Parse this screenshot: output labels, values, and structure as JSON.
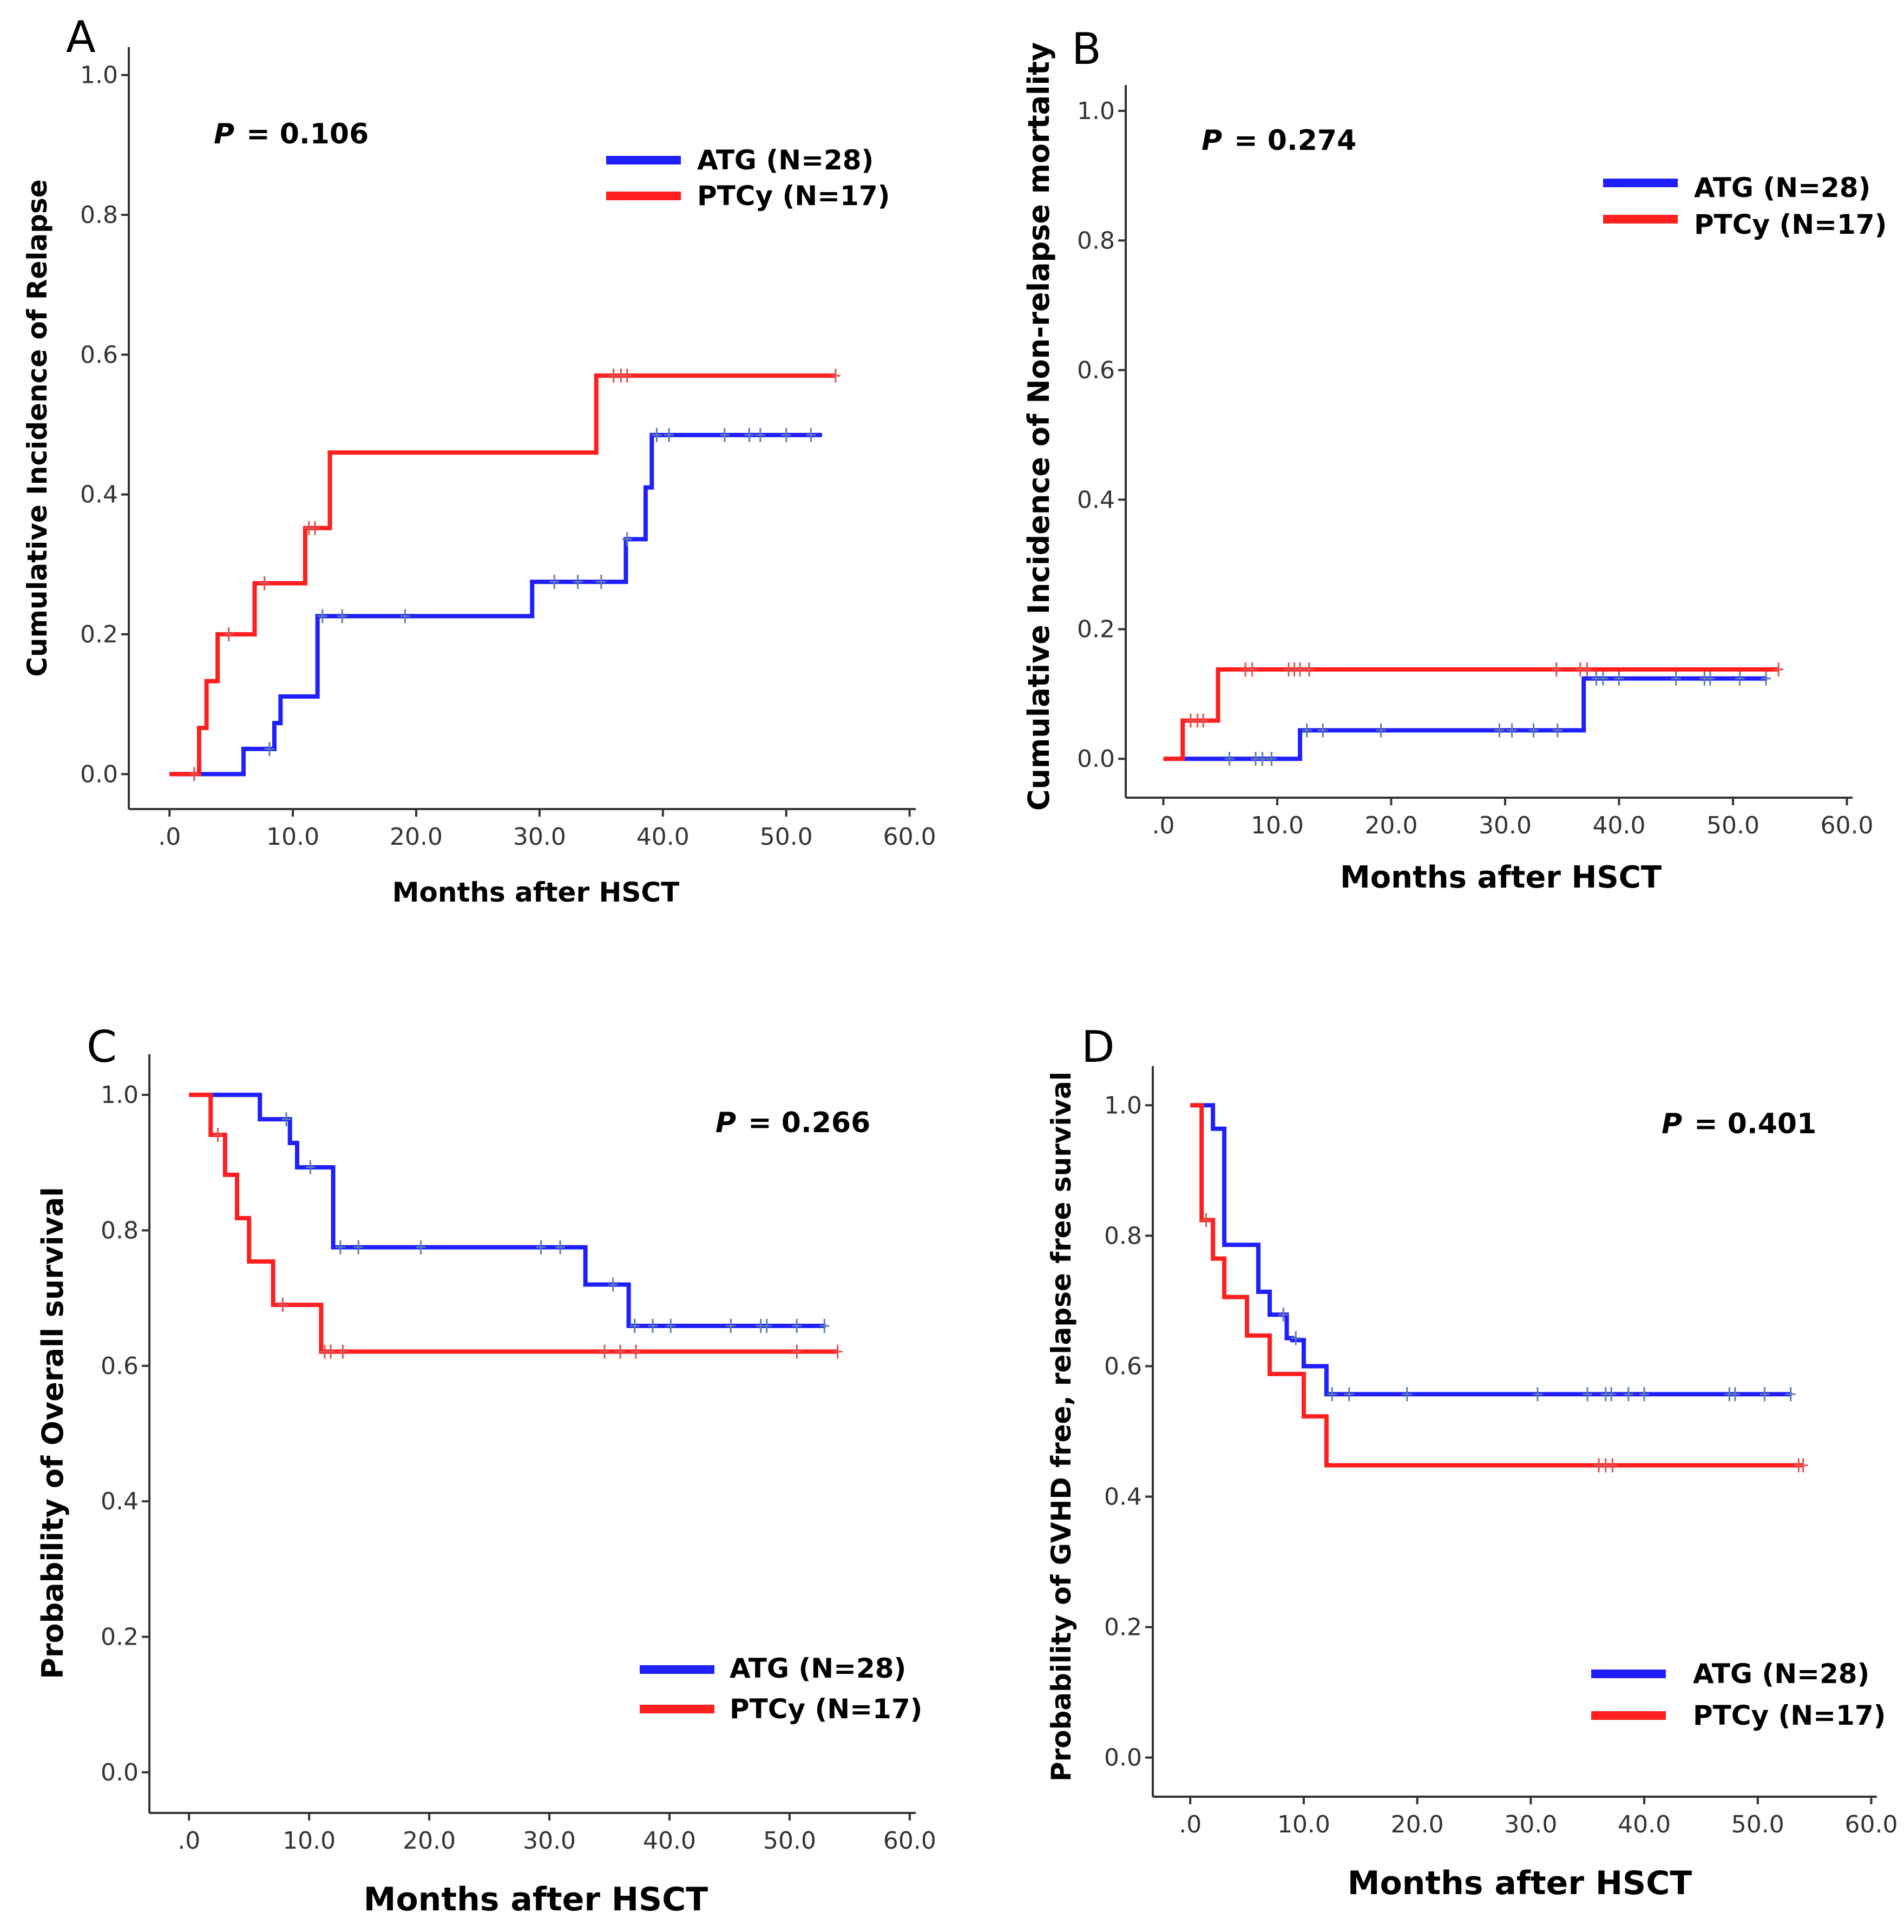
{
  "colors": {
    "atg": "#1f1fff",
    "ptcy": "#ff1f1f",
    "axis": "#333333",
    "atg_censor": "#5a7fb0",
    "ptcy_censor": "#e05050"
  },
  "chart_data": [
    {
      "panel": "A",
      "type": "line",
      "step": true,
      "ylabel": "Cumulative Incidence of Relapse",
      "xlabel": "Months after HSCT",
      "xlim": [
        -3.3,
        60.5
      ],
      "ylim": [
        -0.05,
        1.04
      ],
      "x_ticks": [
        0,
        10,
        20,
        30,
        40,
        50,
        60
      ],
      "x_tick_labels": [
        ".0",
        "10.0",
        "20.0",
        "30.0",
        "40.0",
        "50.0",
        "60.0"
      ],
      "y_ticks": [
        0,
        0.2,
        0.4,
        0.6,
        0.8,
        1.0
      ],
      "y_tick_labels": [
        "0.0",
        "0.2",
        "0.4",
        "0.6",
        "0.8",
        "1.0"
      ],
      "p_letter": "P",
      "p_text": "= 0.106",
      "legend_position": "top-right",
      "series": [
        {
          "name": "ATG (N=28)",
          "color": "atg",
          "x": [
            0,
            6.0,
            8.5,
            9.0,
            12.0,
            29.4,
            37.0,
            38.6,
            39.1,
            52.9
          ],
          "y": [
            0,
            0.036,
            0.073,
            0.111,
            0.226,
            0.275,
            0.336,
            0.41,
            0.485,
            0.485
          ],
          "censored": [
            [
              8.1,
              0.036
            ],
            [
              12.4,
              0.226
            ],
            [
              14.0,
              0.226
            ],
            [
              19.1,
              0.226
            ],
            [
              31.2,
              0.275
            ],
            [
              33.1,
              0.275
            ],
            [
              35.0,
              0.275
            ],
            [
              37.1,
              0.336
            ],
            [
              39.5,
              0.485
            ],
            [
              40.5,
              0.485
            ],
            [
              45.0,
              0.485
            ],
            [
              47.0,
              0.485
            ],
            [
              47.9,
              0.485
            ],
            [
              50.0,
              0.485
            ],
            [
              52.0,
              0.485
            ]
          ]
        },
        {
          "name": "PTCy (N=17)",
          "color": "ptcy",
          "x": [
            0,
            2.4,
            3.0,
            3.9,
            6.9,
            11.0,
            13.0,
            34.6,
            54.0
          ],
          "y": [
            0,
            0.066,
            0.133,
            0.2,
            0.273,
            0.352,
            0.46,
            0.57,
            0.57
          ],
          "censored": [
            [
              2.0,
              0
            ],
            [
              4.8,
              0.2
            ],
            [
              7.7,
              0.273
            ],
            [
              11.3,
              0.352
            ],
            [
              11.8,
              0.352
            ],
            [
              36.0,
              0.57
            ],
            [
              36.6,
              0.57
            ],
            [
              37.1,
              0.57
            ],
            [
              54.0,
              0.57
            ]
          ]
        }
      ],
      "legend": [
        {
          "label": "ATG (N=28)",
          "color": "atg"
        },
        {
          "label": "PTCy (N=17)",
          "color": "ptcy"
        }
      ]
    },
    {
      "panel": "B",
      "type": "line",
      "step": true,
      "ylabel": "Cumulative Incidence of Non-relapse mortality",
      "xlabel": "Months after HSCT",
      "xlim": [
        -3.3,
        60.5
      ],
      "ylim": [
        -0.06,
        1.04
      ],
      "x_ticks": [
        0,
        10,
        20,
        30,
        40,
        50,
        60
      ],
      "x_tick_labels": [
        ".0",
        "10.0",
        "20.0",
        "30.0",
        "40.0",
        "50.0",
        "60.0"
      ],
      "y_ticks": [
        0,
        0.2,
        0.4,
        0.6,
        0.8,
        1.0
      ],
      "y_tick_labels": [
        "0.0",
        "0.2",
        "0.4",
        "0.6",
        "0.8",
        "1.0"
      ],
      "p_letter": "P",
      "p_text": "= 0.274",
      "legend_position": "top-right",
      "series": [
        {
          "name": "ATG (N=28)",
          "color": "atg",
          "x": [
            0,
            12.0,
            36.9,
            53.0
          ],
          "y": [
            0,
            0.044,
            0.124,
            0.124
          ],
          "censored": [
            [
              5.8,
              0
            ],
            [
              8.1,
              0
            ],
            [
              8.7,
              0
            ],
            [
              9.5,
              0
            ],
            [
              12.6,
              0.044
            ],
            [
              14.0,
              0.044
            ],
            [
              19.1,
              0.044
            ],
            [
              29.5,
              0.044
            ],
            [
              30.6,
              0.044
            ],
            [
              32.5,
              0.044
            ],
            [
              34.6,
              0.044
            ],
            [
              38.0,
              0.124
            ],
            [
              38.6,
              0.124
            ],
            [
              40.0,
              0.124
            ],
            [
              45.0,
              0.124
            ],
            [
              47.5,
              0.124
            ],
            [
              48.0,
              0.124
            ],
            [
              50.6,
              0.124
            ],
            [
              52.9,
              0.124
            ]
          ]
        },
        {
          "name": "PTCy (N=17)",
          "color": "ptcy",
          "x": [
            0,
            1.7,
            4.8,
            54.0
          ],
          "y": [
            0,
            0.059,
            0.138,
            0.138
          ],
          "censored": [
            [
              2.4,
              0.059
            ],
            [
              3.0,
              0.059
            ],
            [
              3.5,
              0.059
            ],
            [
              7.2,
              0.138
            ],
            [
              7.8,
              0.138
            ],
            [
              11.0,
              0.138
            ],
            [
              11.5,
              0.138
            ],
            [
              12.0,
              0.138
            ],
            [
              12.8,
              0.138
            ],
            [
              34.5,
              0.138
            ],
            [
              36.6,
              0.138
            ],
            [
              37.2,
              0.138
            ],
            [
              54.0,
              0.138
            ]
          ]
        }
      ],
      "legend": [
        {
          "label": "ATG (N=28)",
          "color": "atg"
        },
        {
          "label": "PTCy (N=17)",
          "color": "ptcy"
        }
      ]
    },
    {
      "panel": "C",
      "type": "line",
      "step": true,
      "ylabel": "Probability of Overall survival",
      "xlabel": "Months after HSCT",
      "xlim": [
        -3.3,
        60.5
      ],
      "ylim": [
        -0.06,
        1.06
      ],
      "x_ticks": [
        0,
        10,
        20,
        30,
        40,
        50,
        60
      ],
      "x_tick_labels": [
        ".0",
        "10.0",
        "20.0",
        "30.0",
        "40.0",
        "50.0",
        "60.0"
      ],
      "y_ticks": [
        0,
        0.2,
        0.4,
        0.6,
        0.8,
        1.0
      ],
      "y_tick_labels": [
        "0.0",
        "0.2",
        "0.4",
        "0.6",
        "0.8",
        "1.0"
      ],
      "p_letter": "P",
      "p_text": "= 0.266",
      "legend_position": "bottom-right",
      "series": [
        {
          "name": "ATG (N=28)",
          "color": "atg",
          "x": [
            0,
            5.9,
            8.4,
            9.0,
            12.0,
            33.0,
            36.6,
            53.0
          ],
          "y": [
            1.0,
            0.964,
            0.929,
            0.893,
            0.775,
            0.72,
            0.659,
            0.659
          ],
          "censored": [
            [
              8.1,
              0.964
            ],
            [
              10.1,
              0.893
            ],
            [
              12.6,
              0.775
            ],
            [
              14.1,
              0.775
            ],
            [
              19.3,
              0.775
            ],
            [
              29.3,
              0.775
            ],
            [
              30.9,
              0.775
            ],
            [
              35.3,
              0.72
            ],
            [
              37.1,
              0.659
            ],
            [
              38.6,
              0.659
            ],
            [
              40.1,
              0.659
            ],
            [
              45.1,
              0.659
            ],
            [
              47.6,
              0.659
            ],
            [
              48.1,
              0.659
            ],
            [
              50.6,
              0.659
            ],
            [
              52.9,
              0.659
            ]
          ]
        },
        {
          "name": "PTCy (N=17)",
          "color": "ptcy",
          "x": [
            0,
            1.8,
            3.0,
            4.0,
            5.0,
            7.0,
            11.0,
            54.0
          ],
          "y": [
            1.0,
            0.941,
            0.882,
            0.818,
            0.754,
            0.69,
            0.621,
            0.621
          ],
          "censored": [
            [
              2.4,
              0.941
            ],
            [
              7.8,
              0.69
            ],
            [
              11.3,
              0.621
            ],
            [
              11.8,
              0.621
            ],
            [
              12.8,
              0.621
            ],
            [
              34.6,
              0.621
            ],
            [
              35.9,
              0.621
            ],
            [
              37.2,
              0.621
            ],
            [
              50.6,
              0.621
            ],
            [
              54.0,
              0.621
            ]
          ]
        }
      ],
      "legend": [
        {
          "label": "ATG (N=28)",
          "color": "atg"
        },
        {
          "label": "PTCy (N=17)",
          "color": "ptcy"
        }
      ]
    },
    {
      "panel": "D",
      "type": "line",
      "step": true,
      "ylabel": "Probability of GVHD free, relapse free survival",
      "xlabel": "Months after HSCT",
      "xlim": [
        -3.3,
        60.5
      ],
      "ylim": [
        -0.06,
        1.06
      ],
      "x_ticks": [
        0,
        10,
        20,
        30,
        40,
        50,
        60
      ],
      "x_tick_labels": [
        ".0",
        "10.0",
        "20.0",
        "30.0",
        "40.0",
        "50.0",
        "60.0"
      ],
      "y_ticks": [
        0,
        0.2,
        0.4,
        0.6,
        0.8,
        1.0
      ],
      "y_tick_labels": [
        "0.0",
        "0.2",
        "0.4",
        "0.6",
        "0.8",
        "1.0"
      ],
      "p_letter": "P",
      "p_text": "= 0.401",
      "legend_position": "bottom-right",
      "series": [
        {
          "name": "ATG (N=28)",
          "color": "atg",
          "x": [
            0,
            2.0,
            3.0,
            6.0,
            7.0,
            8.5,
            9.0,
            10.0,
            12.0,
            53.0
          ],
          "y": [
            1.0,
            0.964,
            0.786,
            0.714,
            0.679,
            0.643,
            0.64,
            0.6,
            0.557,
            0.557
          ],
          "censored": [
            [
              8.2,
              0.679
            ],
            [
              9.3,
              0.643
            ],
            [
              12.5,
              0.557
            ],
            [
              14.0,
              0.557
            ],
            [
              19.1,
              0.557
            ],
            [
              30.6,
              0.557
            ],
            [
              35.0,
              0.557
            ],
            [
              36.6,
              0.557
            ],
            [
              37.1,
              0.557
            ],
            [
              38.6,
              0.557
            ],
            [
              40.0,
              0.557
            ],
            [
              47.5,
              0.557
            ],
            [
              48.0,
              0.557
            ],
            [
              50.6,
              0.557
            ],
            [
              52.9,
              0.557
            ]
          ]
        },
        {
          "name": "PTCy (N=17)",
          "color": "ptcy",
          "x": [
            0,
            1.0,
            2.0,
            3.0,
            5.0,
            7.0,
            10.0,
            12.0,
            54.0
          ],
          "y": [
            1.0,
            0.824,
            0.765,
            0.706,
            0.647,
            0.588,
            0.523,
            0.448,
            0.448
          ],
          "censored": [
            [
              1.4,
              0.824
            ],
            [
              36.0,
              0.448
            ],
            [
              36.6,
              0.448
            ],
            [
              37.2,
              0.448
            ],
            [
              53.6,
              0.448
            ],
            [
              54.0,
              0.448
            ]
          ]
        }
      ],
      "legend": [
        {
          "label": "ATG (N=28)",
          "color": "atg"
        },
        {
          "label": "PTCy (N=17)",
          "color": "ptcy"
        }
      ]
    }
  ]
}
